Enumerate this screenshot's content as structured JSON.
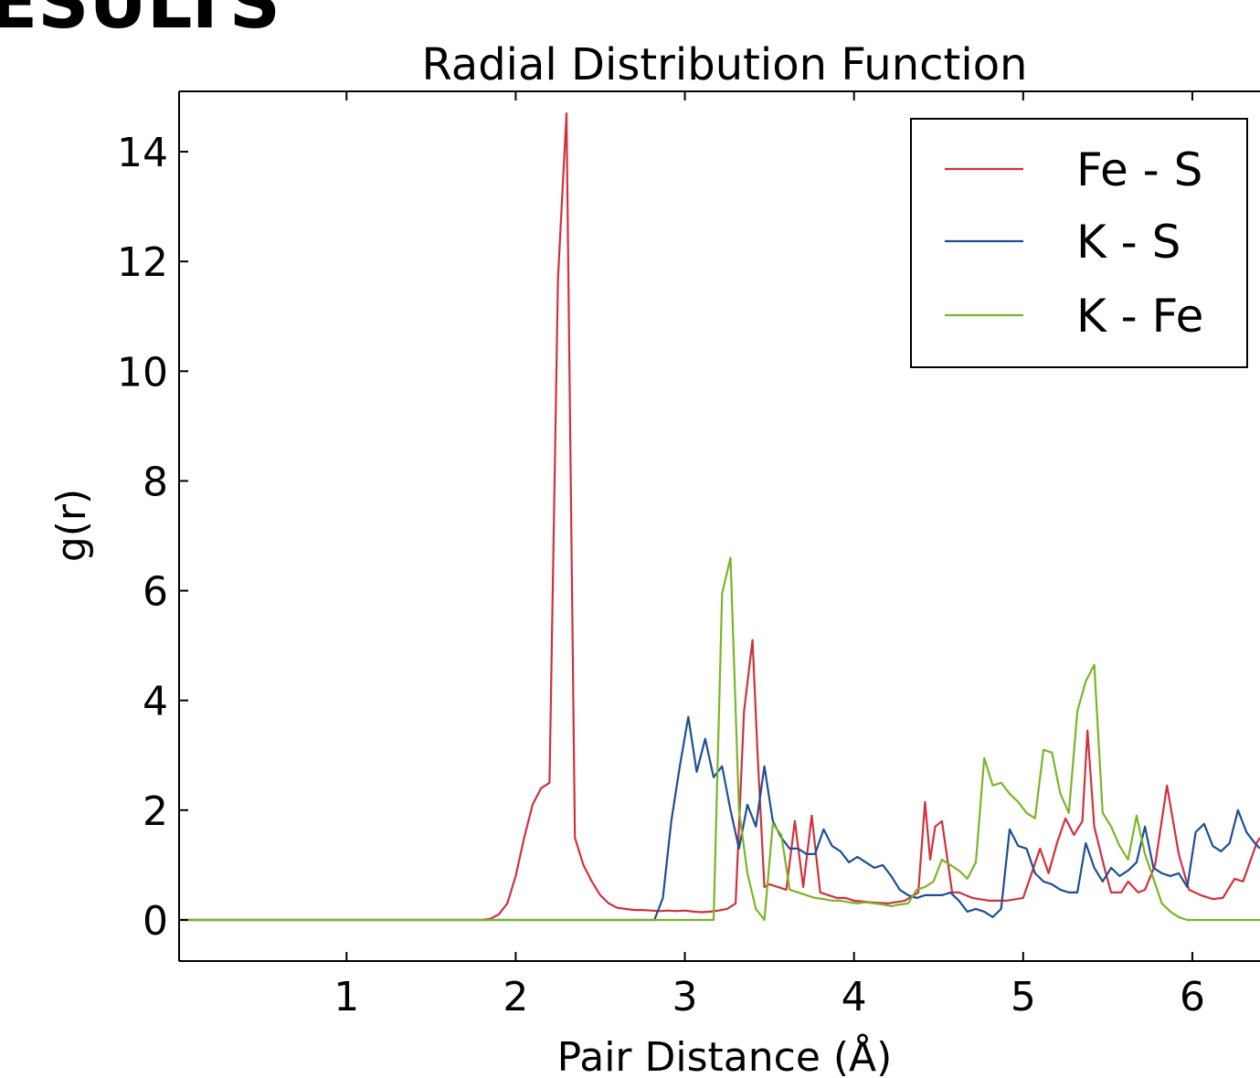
{
  "heading": "ESULTS",
  "chart_data": {
    "type": "line",
    "title": "Radial Distribution Function",
    "xlabel": "Pair Distance (Å)",
    "ylabel": "g(r)",
    "xlim": [
      0.01,
      6.4
    ],
    "ylim": [
      -0.75,
      15.1
    ],
    "xticks": [
      1,
      2,
      3,
      4,
      5,
      6
    ],
    "yticks": [
      0,
      2,
      4,
      6,
      8,
      10,
      12,
      14
    ],
    "grid": false,
    "legend_position": "top-right",
    "series": [
      {
        "name": "Fe - S",
        "color": "#d1313d",
        "x": [
          0.01,
          1.8,
          1.85,
          1.9,
          1.95,
          2.0,
          2.05,
          2.1,
          2.15,
          2.2,
          2.25,
          2.3,
          2.35,
          2.4,
          2.45,
          2.5,
          2.55,
          2.6,
          2.65,
          2.7,
          2.75,
          2.8,
          2.85,
          2.9,
          2.95,
          3.0,
          3.05,
          3.1,
          3.15,
          3.2,
          3.25,
          3.3,
          3.35,
          3.4,
          3.43,
          3.47,
          3.5,
          3.55,
          3.6,
          3.65,
          3.7,
          3.75,
          3.8,
          3.85,
          3.9,
          3.95,
          4.0,
          4.1,
          4.2,
          4.3,
          4.38,
          4.42,
          4.45,
          4.48,
          4.52,
          4.58,
          4.62,
          4.7,
          4.8,
          4.9,
          5.0,
          5.05,
          5.1,
          5.15,
          5.2,
          5.25,
          5.3,
          5.35,
          5.38,
          5.42,
          5.48,
          5.52,
          5.58,
          5.62,
          5.68,
          5.72,
          5.78,
          5.85,
          5.92,
          5.98,
          6.05,
          6.12,
          6.18,
          6.25,
          6.3,
          6.38,
          6.4
        ],
        "y": [
          0,
          0,
          0.02,
          0.1,
          0.3,
          0.8,
          1.5,
          2.1,
          2.4,
          2.5,
          11.7,
          14.7,
          1.5,
          1.0,
          0.7,
          0.45,
          0.3,
          0.22,
          0.2,
          0.18,
          0.18,
          0.17,
          0.16,
          0.17,
          0.16,
          0.17,
          0.15,
          0.14,
          0.15,
          0.17,
          0.2,
          0.3,
          3.8,
          5.1,
          3.0,
          0.6,
          0.65,
          0.6,
          0.55,
          1.8,
          0.6,
          1.9,
          0.5,
          0.45,
          0.4,
          0.4,
          0.35,
          0.32,
          0.3,
          0.35,
          0.5,
          2.15,
          1.1,
          1.7,
          1.8,
          0.5,
          0.5,
          0.4,
          0.35,
          0.35,
          0.4,
          0.85,
          1.3,
          0.85,
          1.4,
          1.85,
          1.55,
          1.8,
          3.45,
          1.7,
          0.95,
          0.5,
          0.5,
          0.7,
          0.5,
          0.55,
          1.0,
          2.45,
          1.2,
          0.55,
          0.45,
          0.38,
          0.4,
          0.75,
          0.7,
          1.4,
          1.5
        ]
      },
      {
        "name": "K - S",
        "color": "#1d4f91",
        "x": [
          0.01,
          2.82,
          2.87,
          2.92,
          2.97,
          3.02,
          3.07,
          3.12,
          3.17,
          3.22,
          3.27,
          3.32,
          3.37,
          3.42,
          3.47,
          3.52,
          3.57,
          3.62,
          3.67,
          3.72,
          3.77,
          3.82,
          3.87,
          3.92,
          3.97,
          4.02,
          4.07,
          4.12,
          4.17,
          4.22,
          4.27,
          4.32,
          4.37,
          4.42,
          4.47,
          4.52,
          4.57,
          4.62,
          4.67,
          4.72,
          4.77,
          4.82,
          4.87,
          4.92,
          4.97,
          5.02,
          5.07,
          5.12,
          5.17,
          5.22,
          5.27,
          5.32,
          5.37,
          5.42,
          5.47,
          5.52,
          5.57,
          5.62,
          5.67,
          5.72,
          5.77,
          5.82,
          5.87,
          5.92,
          5.97,
          6.02,
          6.07,
          6.12,
          6.17,
          6.22,
          6.27,
          6.32,
          6.37,
          6.4
        ],
        "y": [
          0,
          0,
          0.4,
          1.8,
          2.8,
          3.7,
          2.7,
          3.3,
          2.6,
          2.8,
          2.0,
          1.3,
          2.1,
          1.7,
          2.8,
          1.8,
          1.5,
          1.3,
          1.3,
          1.2,
          1.2,
          1.65,
          1.35,
          1.25,
          1.05,
          1.15,
          1.05,
          0.95,
          1.0,
          0.8,
          0.55,
          0.45,
          0.4,
          0.45,
          0.45,
          0.45,
          0.5,
          0.35,
          0.15,
          0.2,
          0.15,
          0.05,
          0.2,
          1.65,
          1.35,
          1.3,
          0.85,
          0.7,
          0.65,
          0.55,
          0.5,
          0.5,
          1.4,
          0.95,
          0.7,
          0.95,
          0.8,
          0.9,
          1.05,
          1.7,
          0.95,
          0.85,
          0.8,
          0.85,
          0.6,
          1.6,
          1.75,
          1.35,
          1.25,
          1.4,
          2.0,
          1.6,
          1.4,
          1.3
        ]
      },
      {
        "name": "K - Fe",
        "color": "#7bb526",
        "x": [
          0.01,
          3.17,
          3.22,
          3.27,
          3.32,
          3.37,
          3.42,
          3.47,
          3.52,
          3.57,
          3.62,
          3.67,
          3.72,
          3.77,
          3.82,
          3.87,
          3.92,
          3.97,
          4.02,
          4.07,
          4.12,
          4.17,
          4.22,
          4.27,
          4.32,
          4.37,
          4.42,
          4.47,
          4.52,
          4.57,
          4.62,
          4.67,
          4.72,
          4.77,
          4.82,
          4.87,
          4.92,
          4.97,
          5.02,
          5.07,
          5.12,
          5.17,
          5.22,
          5.27,
          5.32,
          5.37,
          5.42,
          5.47,
          5.52,
          5.57,
          5.62,
          5.67,
          5.72,
          5.77,
          5.82,
          5.87,
          5.92,
          5.97,
          6.02,
          6.07,
          6.12,
          6.17,
          6.22,
          6.27,
          6.32,
          6.37,
          6.4
        ],
        "y": [
          0,
          0,
          5.95,
          6.6,
          2.0,
          0.85,
          0.2,
          0.0,
          1.75,
          1.55,
          0.55,
          0.5,
          0.45,
          0.4,
          0.38,
          0.35,
          0.35,
          0.32,
          0.3,
          0.32,
          0.3,
          0.28,
          0.25,
          0.28,
          0.3,
          0.55,
          0.6,
          0.7,
          1.1,
          1.0,
          0.9,
          0.75,
          1.05,
          2.95,
          2.45,
          2.5,
          2.3,
          2.15,
          1.95,
          1.85,
          3.1,
          3.05,
          2.3,
          1.95,
          3.8,
          4.35,
          4.65,
          1.95,
          1.7,
          1.35,
          1.1,
          1.9,
          1.2,
          0.75,
          0.3,
          0.15,
          0.05,
          0.0,
          0.0,
          0.0,
          0.0,
          0.0,
          0.0,
          0.0,
          0.0,
          0.0,
          0.0
        ]
      }
    ]
  }
}
